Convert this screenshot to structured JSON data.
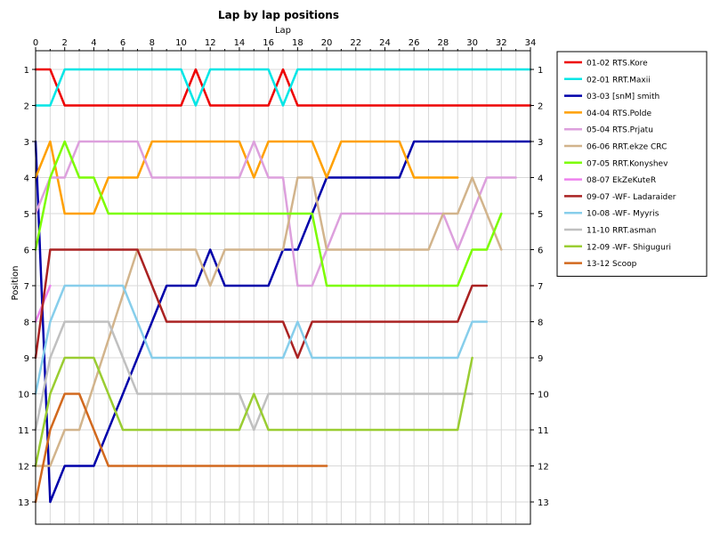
{
  "chart_data": {
    "type": "line",
    "title": "Lap by lap positions",
    "xlabel": "Lap",
    "ylabel": "Position",
    "xlim": [
      0,
      34
    ],
    "ylim": [
      1,
      13
    ],
    "x_ticks": [
      "0",
      "2",
      "4",
      "6",
      "8",
      "10",
      "12",
      "14",
      "16",
      "18",
      "20",
      "22",
      "24",
      "26",
      "28",
      "30",
      "32",
      "34"
    ],
    "y_ticks": [
      "1",
      "2",
      "3",
      "4",
      "5",
      "6",
      "7",
      "8",
      "9",
      "10",
      "11",
      "12",
      "13"
    ],
    "y_inverted": true,
    "grid": true,
    "legend_position": "right",
    "series": [
      {
        "name": "01-02 RTS.Kore",
        "color": "#ee0000",
        "values": [
          [
            0,
            1
          ],
          [
            1,
            1
          ],
          [
            2,
            2
          ],
          [
            10,
            2
          ],
          [
            11,
            1
          ],
          [
            12,
            2
          ],
          [
            16,
            2
          ],
          [
            17,
            1
          ],
          [
            18,
            2
          ],
          [
            34,
            2
          ]
        ]
      },
      {
        "name": "02-01 RRT.Maxii",
        "color": "#00e6e6",
        "values": [
          [
            0,
            2
          ],
          [
            1,
            2
          ],
          [
            2,
            1
          ],
          [
            10,
            1
          ],
          [
            11,
            2
          ],
          [
            12,
            1
          ],
          [
            16,
            1
          ],
          [
            17,
            2
          ],
          [
            18,
            1
          ],
          [
            34,
            1
          ]
        ]
      },
      {
        "name": "03-03 [snM] smith",
        "color": "#0000aa",
        "values": [
          [
            0,
            3
          ],
          [
            1,
            13
          ],
          [
            2,
            12
          ],
          [
            4,
            12
          ],
          [
            9,
            7
          ],
          [
            11,
            7
          ],
          [
            12,
            6
          ],
          [
            13,
            7
          ],
          [
            16,
            7
          ],
          [
            17,
            6
          ],
          [
            18,
            6
          ],
          [
            20,
            4
          ],
          [
            25,
            4
          ],
          [
            26,
            3
          ],
          [
            34,
            3
          ]
        ]
      },
      {
        "name": "04-04 RTS.Polde",
        "color": "#ffa000",
        "values": [
          [
            0,
            4
          ],
          [
            1,
            3
          ],
          [
            2,
            5
          ],
          [
            4,
            5
          ],
          [
            5,
            4
          ],
          [
            7,
            4
          ],
          [
            8,
            3
          ],
          [
            14,
            3
          ],
          [
            15,
            4
          ],
          [
            16,
            3
          ],
          [
            19,
            3
          ],
          [
            20,
            4
          ],
          [
            21,
            3
          ],
          [
            25,
            3
          ],
          [
            26,
            4
          ],
          [
            29,
            4
          ]
        ]
      },
      {
        "name": "05-04 RTS.Prjatu",
        "color": "#dda0dd",
        "values": [
          [
            0,
            5
          ],
          [
            1,
            4
          ],
          [
            2,
            4
          ],
          [
            3,
            3
          ],
          [
            7,
            3
          ],
          [
            8,
            4
          ],
          [
            14,
            4
          ],
          [
            15,
            3
          ],
          [
            16,
            4
          ],
          [
            17,
            4
          ],
          [
            18,
            7
          ],
          [
            19,
            7
          ],
          [
            20,
            6
          ],
          [
            21,
            5
          ],
          [
            28,
            5
          ],
          [
            29,
            6
          ],
          [
            31,
            4
          ],
          [
            33,
            4
          ]
        ]
      },
      {
        "name": "06-06 RRT.ekze CRC",
        "color": "#d2b48c",
        "values": [
          [
            0,
            12
          ],
          [
            1,
            12
          ],
          [
            2,
            11
          ],
          [
            3,
            11
          ],
          [
            7,
            6
          ],
          [
            11,
            6
          ],
          [
            12,
            7
          ],
          [
            13,
            6
          ],
          [
            17,
            6
          ],
          [
            18,
            4
          ],
          [
            19,
            4
          ],
          [
            20,
            6
          ],
          [
            27,
            6
          ],
          [
            28,
            5
          ],
          [
            29,
            5
          ],
          [
            30,
            4
          ],
          [
            32,
            6
          ]
        ]
      },
      {
        "name": "07-05 RRT.Konyshev",
        "color": "#7cfc00",
        "values": [
          [
            0,
            6
          ],
          [
            1,
            4
          ],
          [
            2,
            3
          ],
          [
            3,
            4
          ],
          [
            4,
            4
          ],
          [
            5,
            5
          ],
          [
            19,
            5
          ],
          [
            20,
            7
          ],
          [
            29,
            7
          ],
          [
            30,
            6
          ],
          [
            31,
            6
          ],
          [
            32,
            5
          ]
        ]
      },
      {
        "name": "08-07 EkZeKuteR",
        "color": "#ee82ee",
        "values": [
          [
            0,
            8
          ],
          [
            1,
            7
          ]
        ]
      },
      {
        "name": "09-07 -WF- Ladaraider",
        "color": "#aa2222",
        "values": [
          [
            0,
            9
          ],
          [
            1,
            6
          ],
          [
            7,
            6
          ],
          [
            9,
            8
          ],
          [
            17,
            8
          ],
          [
            18,
            9
          ],
          [
            19,
            8
          ],
          [
            29,
            8
          ],
          [
            30,
            7
          ],
          [
            31,
            7
          ]
        ]
      },
      {
        "name": "10-08 -WF- Myyris",
        "color": "#87ceeb",
        "values": [
          [
            0,
            10
          ],
          [
            1,
            8
          ],
          [
            2,
            7
          ],
          [
            6,
            7
          ],
          [
            8,
            9
          ],
          [
            17,
            9
          ],
          [
            18,
            8
          ],
          [
            19,
            9
          ],
          [
            29,
            9
          ],
          [
            30,
            8
          ],
          [
            31,
            8
          ]
        ]
      },
      {
        "name": "11-10 RRT.asman",
        "color": "#c0c0c0",
        "values": [
          [
            0,
            11
          ],
          [
            1,
            9
          ],
          [
            2,
            8
          ],
          [
            5,
            8
          ],
          [
            7,
            10
          ],
          [
            14,
            10
          ],
          [
            15,
            11
          ],
          [
            16,
            10
          ],
          [
            30,
            10
          ]
        ]
      },
      {
        "name": "12-09 -WF- Shiguguri",
        "color": "#9acd32",
        "values": [
          [
            0,
            12
          ],
          [
            1,
            10
          ],
          [
            2,
            9
          ],
          [
            4,
            9
          ],
          [
            6,
            11
          ],
          [
            14,
            11
          ],
          [
            15,
            10
          ],
          [
            16,
            11
          ],
          [
            29,
            11
          ],
          [
            30,
            9
          ]
        ]
      },
      {
        "name": "13-12 Scoop",
        "color": "#d2691e",
        "values": [
          [
            0,
            13
          ],
          [
            1,
            11
          ],
          [
            2,
            10
          ],
          [
            3,
            10
          ],
          [
            5,
            12
          ],
          [
            20,
            12
          ]
        ]
      }
    ]
  }
}
